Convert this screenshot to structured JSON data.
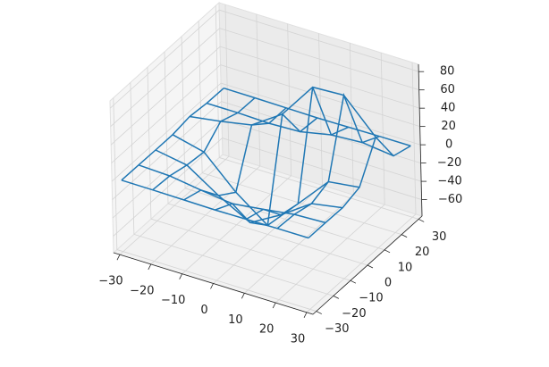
{
  "chart_data": {
    "type": "wireframe3d",
    "x": [
      -30,
      -20,
      -10,
      0,
      10,
      20,
      30
    ],
    "y": [
      -30,
      -20,
      -10,
      0,
      10,
      20,
      30
    ],
    "z": [
      [
        0,
        -0.1,
        -0.5,
        -0.9,
        -0.5,
        -0.1,
        0
      ],
      [
        -0.1,
        -1.5,
        -6.5,
        -10.8,
        -6.5,
        -1.5,
        -0.1
      ],
      [
        -0.5,
        -6.5,
        -29.3,
        -48.3,
        -29.3,
        -6.5,
        -0.5
      ],
      [
        -0.5,
        -8.9,
        -42.4,
        -68.1,
        -34,
        0.7,
        5
      ],
      [
        2.5,
        7.8,
        14.3,
        36.7,
        76.8,
        78.5,
        43.1
      ],
      [
        0.3,
        0.4,
        -0.6,
        0.7,
        7.8,
        10,
        5.8
      ],
      [
        0,
        -0.1,
        -0.5,
        -0.9,
        -0.5,
        -0.1,
        0
      ]
    ],
    "color": "#1f77b4",
    "xlim": [
      -32,
      32
    ],
    "ylim": [
      -32,
      32
    ],
    "zlim": [
      -78,
      88
    ],
    "xticks": [
      {
        "value": -30,
        "label": "−30"
      },
      {
        "value": -20,
        "label": "−20"
      },
      {
        "value": -10,
        "label": "−10"
      },
      0,
      10,
      20,
      30
    ],
    "yticks": [
      {
        "value": -30,
        "label": "−30"
      },
      {
        "value": -20,
        "label": "−20"
      },
      {
        "value": -10,
        "label": "−10"
      },
      0,
      10,
      20,
      30
    ],
    "zticks": [
      {
        "value": -60,
        "label": "−60"
      },
      {
        "value": -40,
        "label": "−40"
      },
      {
        "value": -20,
        "label": "−20"
      },
      0,
      20,
      40,
      60,
      80
    ],
    "grid": true
  }
}
